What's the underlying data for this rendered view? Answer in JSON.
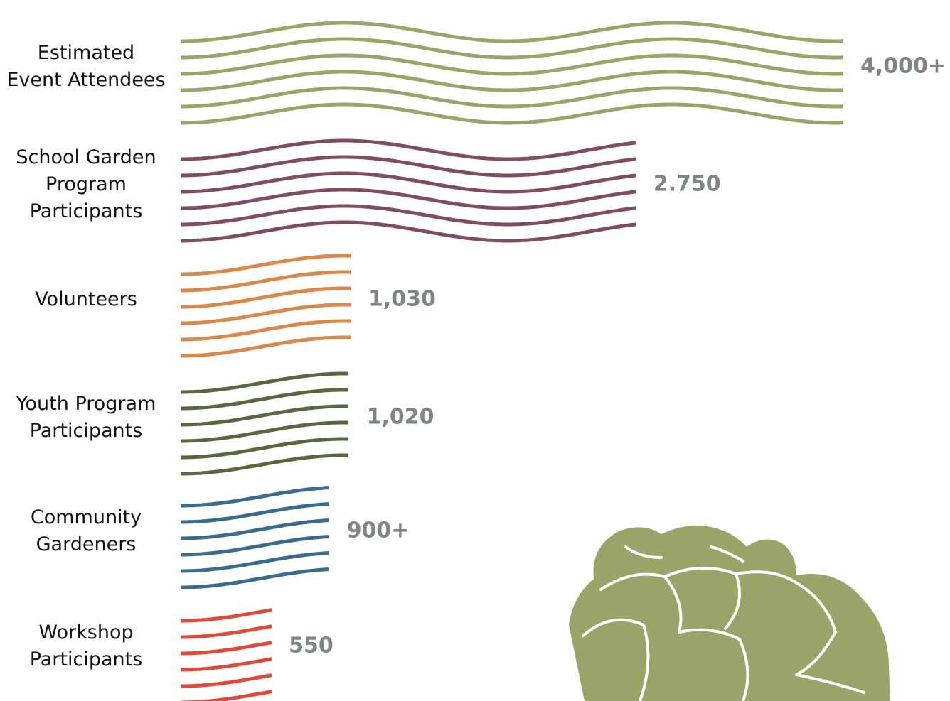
{
  "chart_data": {
    "type": "bar",
    "orientation": "horizontal",
    "title": "",
    "xlabel": "",
    "ylabel": "",
    "grid": false,
    "legend": "none",
    "categories": [
      "Estimated Event Attendees",
      "School Garden Program Participants",
      "Volunteers",
      "Youth Program Participants",
      "Community Gardeners",
      "Workshop Participants"
    ],
    "category_lines": [
      [
        "Estimated",
        "Event Attendees"
      ],
      [
        "School Garden",
        "Program",
        "Participants"
      ],
      [
        "Volunteers"
      ],
      [
        "Youth Program",
        "Participants"
      ],
      [
        "Community",
        "Gardeners"
      ],
      [
        "Workshop",
        "Participants"
      ]
    ],
    "values": [
      4000,
      2750,
      1030,
      1020,
      900,
      550
    ],
    "value_labels": [
      "4,000+",
      "2.750",
      "1,030",
      "1,020",
      "900+",
      "550"
    ],
    "colors": [
      "#9aa468",
      "#7e4d62",
      "#d9884a",
      "#5a6640",
      "#3b6a8a",
      "#e0493a"
    ],
    "decoration": {
      "artichoke_icon_color": "#9aa468"
    }
  }
}
